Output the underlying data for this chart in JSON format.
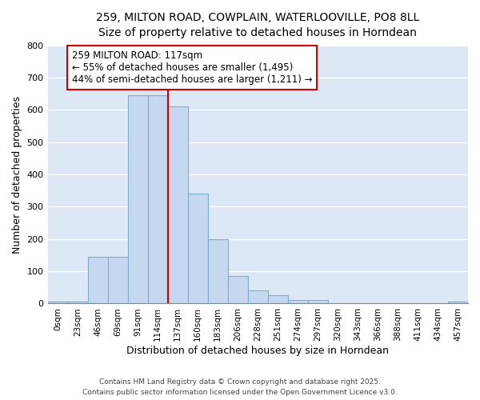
{
  "title_line1": "259, MILTON ROAD, COWPLAIN, WATERLOOVILLE, PO8 8LL",
  "title_line2": "Size of property relative to detached houses in Horndean",
  "xlabel": "Distribution of detached houses by size in Horndean",
  "ylabel": "Number of detached properties",
  "bar_color": "#c5d8f0",
  "bar_edge_color": "#7bafd4",
  "background_color": "#dce8f5",
  "grid_color": "#ffffff",
  "annotation_box_color": "#cc0000",
  "annotation_text_line1": "259 MILTON ROAD: 117sqm",
  "annotation_text_line2": "← 55% of detached houses are smaller (1,495)",
  "annotation_text_line3": "44% of semi-detached houses are larger (1,211) →",
  "red_line_index": 5,
  "categories": [
    "0sqm",
    "23sqm",
    "46sqm",
    "69sqm",
    "91sqm",
    "114sqm",
    "137sqm",
    "160sqm",
    "183sqm",
    "206sqm",
    "228sqm",
    "251sqm",
    "274sqm",
    "297sqm",
    "320sqm",
    "343sqm",
    "366sqm",
    "388sqm",
    "411sqm",
    "434sqm",
    "457sqm"
  ],
  "values": [
    5,
    5,
    145,
    145,
    645,
    645,
    610,
    340,
    200,
    85,
    42,
    25,
    10,
    10,
    0,
    0,
    0,
    0,
    0,
    0,
    5
  ],
  "ylim": [
    0,
    800
  ],
  "yticks": [
    0,
    100,
    200,
    300,
    400,
    500,
    600,
    700,
    800
  ],
  "footer_line1": "Contains HM Land Registry data © Crown copyright and database right 2025.",
  "footer_line2": "Contains public sector information licensed under the Open Government Licence v3.0.",
  "fig_bg": "#ffffff"
}
